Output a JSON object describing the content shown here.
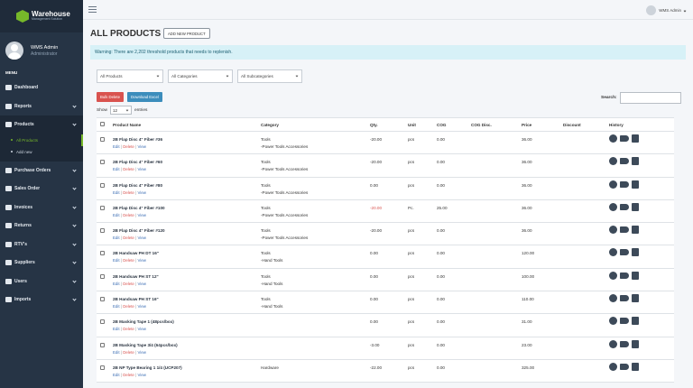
{
  "brand": {
    "title": "Warehouse",
    "subtitle": "Management Solution"
  },
  "user": {
    "name": "WMS Admin",
    "role": "Administrator"
  },
  "menu_header": "MENU",
  "nav": [
    {
      "label": "Dashboard",
      "icon": "dashboard-icon"
    },
    {
      "label": "Reports",
      "icon": "bar-chart-icon"
    },
    {
      "label": "Products",
      "icon": "boxes-icon"
    }
  ],
  "products_sub": [
    "All Products",
    "Add new"
  ],
  "nav_rest": [
    {
      "label": "Purchase Orders",
      "icon": "cart-icon"
    },
    {
      "label": "Sales Order",
      "icon": "truck-icon"
    },
    {
      "label": "Invoices",
      "icon": "invoice-icon"
    },
    {
      "label": "Returns",
      "icon": "undo-icon"
    },
    {
      "label": "RTV's",
      "icon": "rtv-icon"
    },
    {
      "label": "Suppliers",
      "icon": "suppliers-icon"
    },
    {
      "label": "Users",
      "icon": "users-icon"
    },
    {
      "label": "Imports",
      "icon": "gear-icon"
    }
  ],
  "topbar": {
    "user": "WMS Admin"
  },
  "page": {
    "title": "ALL PRODUCTS",
    "add_button": "ADD NEW PRODUCT",
    "warning": "Warning: There are 2,202 threshold products that needs to replenish."
  },
  "filters": {
    "products": "All Products",
    "categories": "All Categories",
    "subcategories": "All Subcategories"
  },
  "actions": {
    "bulk_delete": "Bulk Delete",
    "download_excel": "Download Excel"
  },
  "search": {
    "label": "Search:"
  },
  "show": {
    "prefix": "Show",
    "value": "12",
    "suffix": "entries"
  },
  "columns": [
    "Product Name",
    "Category",
    "Qty.",
    "Unit",
    "COG",
    "COG Disc.",
    "Price",
    "Discount",
    "History"
  ],
  "link_labels": {
    "edit": "Edit",
    "delete": "Delete",
    "view": "View"
  },
  "rows": [
    {
      "name": "2B Flap Disc 4\" Fiber #36",
      "cat1": "Tools",
      "cat2": "-Power Tools Accessories",
      "qty": "-20.00",
      "unit": "pcs",
      "cog": "0.00",
      "price": "36.00"
    },
    {
      "name": "2B Flap Disc 4\" Fiber #60",
      "cat1": "Tools",
      "cat2": "-Power Tools Accessories",
      "qty": "-20.00",
      "unit": "pcs",
      "cog": "0.00",
      "price": "36.00"
    },
    {
      "name": "2B Flap Disc 4\" Fiber #80",
      "cat1": "Tools",
      "cat2": "-Power Tools Accessories",
      "qty": "0.00",
      "unit": "pcs",
      "cog": "0.00",
      "price": "36.00"
    },
    {
      "name": "2B Flap Disc 4\" Fiber #100",
      "cat1": "Tools",
      "cat2": "-Power Tools Accessories",
      "qty": "-20.00",
      "unit": "Pc.",
      "cog": "25.00",
      "price": "36.00"
    },
    {
      "name": "2B Flap Disc 4\" Fiber #120",
      "cat1": "Tools",
      "cat2": "-Power Tools Accessories",
      "qty": "-20.00",
      "unit": "pcs",
      "cog": "0.00",
      "price": "36.00"
    },
    {
      "name": "2B Handsaw PH DT 16\"",
      "cat1": "Tools",
      "cat2": "-Hand Tools",
      "qty": "0.00",
      "unit": "pcs",
      "cog": "0.00",
      "price": "120.00"
    },
    {
      "name": "2B Handsaw PH ST 12\"",
      "cat1": "Tools",
      "cat2": "-Hand Tools",
      "qty": "0.00",
      "unit": "pcs",
      "cog": "0.00",
      "price": "100.00"
    },
    {
      "name": "2B Handsaw PH ST 16\"",
      "cat1": "Tools",
      "cat2": "-Hand Tools",
      "qty": "0.00",
      "unit": "pcs",
      "cog": "0.00",
      "price": "110.00"
    },
    {
      "name": "2B Masking Tape 1 (48pcs/box)",
      "cat1": "",
      "cat2": "",
      "qty": "0.00",
      "unit": "pcs",
      "cog": "0.00",
      "price": "31.00"
    },
    {
      "name": "2B Masking Tape 3/4 (64pcs/box)",
      "cat1": "",
      "cat2": "",
      "qty": "-3.00",
      "unit": "pcs",
      "cog": "0.00",
      "price": "23.00"
    },
    {
      "name": "2B NP Type Bearing 1 1/4 (UCP207)",
      "cat1": "Hardware",
      "cat2": "",
      "qty": "-22.00",
      "unit": "pcs",
      "cog": "0.00",
      "price": "325.00"
    }
  ]
}
